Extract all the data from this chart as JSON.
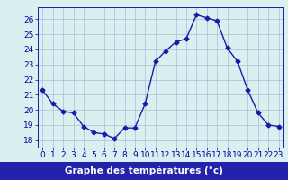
{
  "x": [
    0,
    1,
    2,
    3,
    4,
    5,
    6,
    7,
    8,
    9,
    10,
    11,
    12,
    13,
    14,
    15,
    16,
    17,
    18,
    19,
    20,
    21,
    22,
    23
  ],
  "y": [
    21.3,
    20.4,
    19.9,
    19.8,
    18.9,
    18.5,
    18.4,
    18.1,
    18.8,
    18.8,
    20.4,
    23.2,
    23.9,
    24.5,
    24.7,
    26.3,
    26.1,
    25.9,
    24.1,
    23.2,
    21.3,
    19.8,
    19.0,
    18.9
  ],
  "line_color": "#1a1aaa",
  "marker": "D",
  "marker_size": 2.5,
  "xlabel": "Graphe des températures (°c)",
  "ylim": [
    17.5,
    26.8
  ],
  "yticks": [
    18,
    19,
    20,
    21,
    22,
    23,
    24,
    25,
    26
  ],
  "xticks": [
    0,
    1,
    2,
    3,
    4,
    5,
    6,
    7,
    8,
    9,
    10,
    11,
    12,
    13,
    14,
    15,
    16,
    17,
    18,
    19,
    20,
    21,
    22,
    23
  ],
  "xlim": [
    -0.5,
    23.5
  ],
  "bg_color": "#d8f0f0",
  "grid_color": "#b0b8d8",
  "xlabel_text_color": "#ffffff",
  "xlabel_bg": "#2222aa",
  "tick_fontsize": 6.5,
  "tick_color": "#000099",
  "line_width": 1.0
}
